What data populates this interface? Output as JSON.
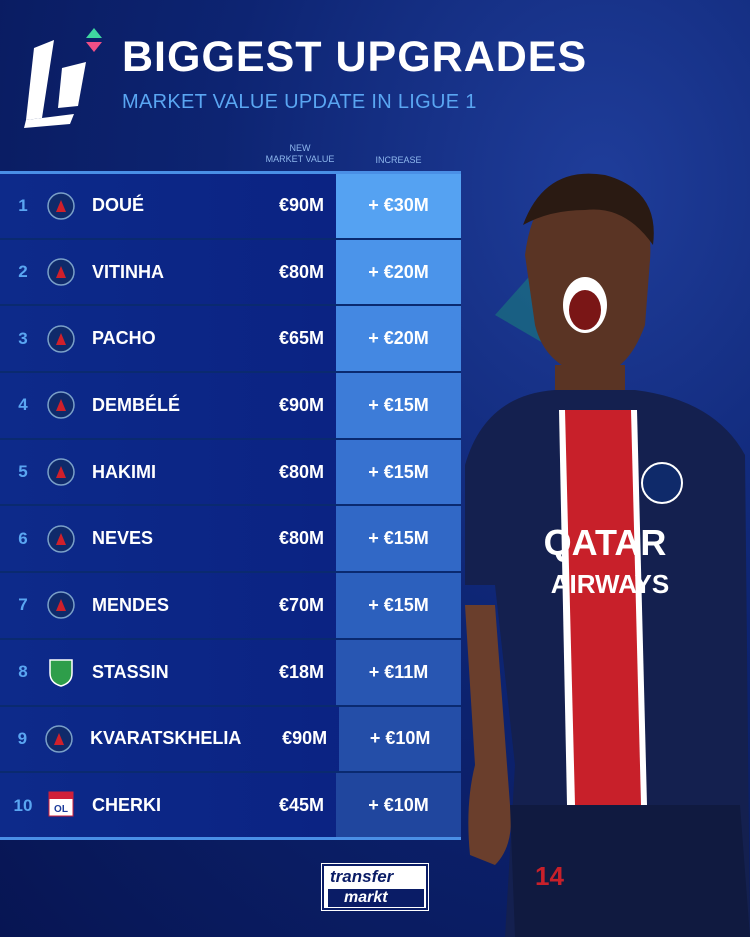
{
  "header": {
    "logo_text": "L1",
    "title": "BIGGEST UPGRADES",
    "subtitle": "MARKET VALUE UPDATE IN LIGUE 1"
  },
  "columns": {
    "new_value_line1": "NEW",
    "new_value_line2": "MARKET VALUE",
    "increase": "INCREASE"
  },
  "rows": [
    {
      "rank": "1",
      "club": "PSG",
      "name": "DOUÉ",
      "value": "€90M",
      "increase": "+ €30M",
      "color": "#55a2f2"
    },
    {
      "rank": "2",
      "club": "PSG",
      "name": "VITINHA",
      "value": "€80M",
      "increase": "+ €20M",
      "color": "#4b94ea"
    },
    {
      "rank": "3",
      "club": "PSG",
      "name": "PACHO",
      "value": "€65M",
      "increase": "+ €20M",
      "color": "#4488e2"
    },
    {
      "rank": "4",
      "club": "PSG",
      "name": "DEMBÉLÉ",
      "value": "€90M",
      "increase": "+ €15M",
      "color": "#3d7cd8"
    },
    {
      "rank": "5",
      "club": "PSG",
      "name": "HAKIMI",
      "value": "€80M",
      "increase": "+ €15M",
      "color": "#3772d0"
    },
    {
      "rank": "6",
      "club": "PSG",
      "name": "NEVES",
      "value": "€80M",
      "increase": "+ €15M",
      "color": "#3168c6"
    },
    {
      "rank": "7",
      "club": "PSG",
      "name": "MENDES",
      "value": "€70M",
      "increase": "+ €15M",
      "color": "#2c60bd"
    },
    {
      "rank": "8",
      "club": "ASSE",
      "name": "STASSIN",
      "value": "€18M",
      "increase": "+ €11M",
      "color": "#2856b2"
    },
    {
      "rank": "9",
      "club": "PSG",
      "name": "KVARATSKHELIA",
      "value": "€90M",
      "increase": "+ €10M",
      "color": "#244ea8"
    },
    {
      "rank": "10",
      "club": "OL",
      "name": "CHERKI",
      "value": "€45M",
      "increase": "+ €10M",
      "color": "#20469e"
    }
  ],
  "player": {
    "sponsor_line1": "QATAR",
    "sponsor_line2": "AIRWAYS",
    "shirt_number": "14"
  },
  "footer": {
    "brand_line1": "transfer",
    "brand_line2": "markt"
  }
}
